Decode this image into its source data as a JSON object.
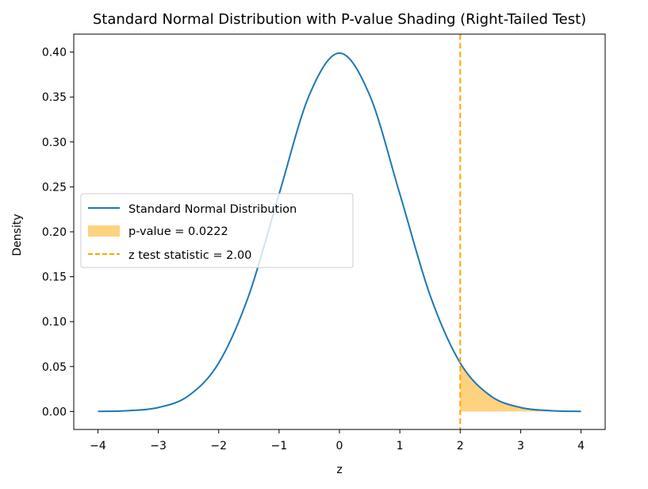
{
  "chart_data": {
    "type": "line",
    "title": "Standard Normal Distribution with P-value Shading (Right-Tailed Test)",
    "xlabel": "z",
    "ylabel": "Density",
    "xlim": [
      -4.4,
      4.4
    ],
    "ylim": [
      -0.02,
      0.42
    ],
    "x_ticks": [
      -4,
      -3,
      -2,
      -1,
      0,
      1,
      2,
      3,
      4
    ],
    "x_tick_labels": [
      "−4",
      "−3",
      "−2",
      "−1",
      "0",
      "1",
      "2",
      "3",
      "4"
    ],
    "y_ticks": [
      0.0,
      0.05,
      0.1,
      0.15,
      0.2,
      0.25,
      0.3,
      0.35,
      0.4
    ],
    "y_tick_labels": [
      "0.00",
      "0.05",
      "0.10",
      "0.15",
      "0.20",
      "0.25",
      "0.30",
      "0.35",
      "0.40"
    ],
    "grid": false,
    "legend_position": "center-left",
    "series": [
      {
        "name": "Standard Normal Distribution",
        "kind": "line",
        "color": "#1f77b4",
        "x": [
          -4.0,
          -3.5,
          -3.0,
          -2.5,
          -2.0,
          -1.5,
          -1.0,
          -0.5,
          0.0,
          0.5,
          1.0,
          1.5,
          2.0,
          2.5,
          3.0,
          3.5,
          4.0
        ],
        "y": [
          0.0001,
          0.0009,
          0.0044,
          0.0175,
          0.054,
          0.1295,
          0.242,
          0.3521,
          0.3989,
          0.3521,
          0.242,
          0.1295,
          0.054,
          0.0175,
          0.0044,
          0.0009,
          0.0001
        ]
      },
      {
        "name": "p-value = 0.0222",
        "kind": "area",
        "color": "#ffa500",
        "x_from": 2.0,
        "x_to": 4.0,
        "value": 0.0222
      },
      {
        "name": "z test statistic = 2.00",
        "kind": "vline",
        "color": "#ffa500",
        "x": 2.0
      }
    ]
  }
}
